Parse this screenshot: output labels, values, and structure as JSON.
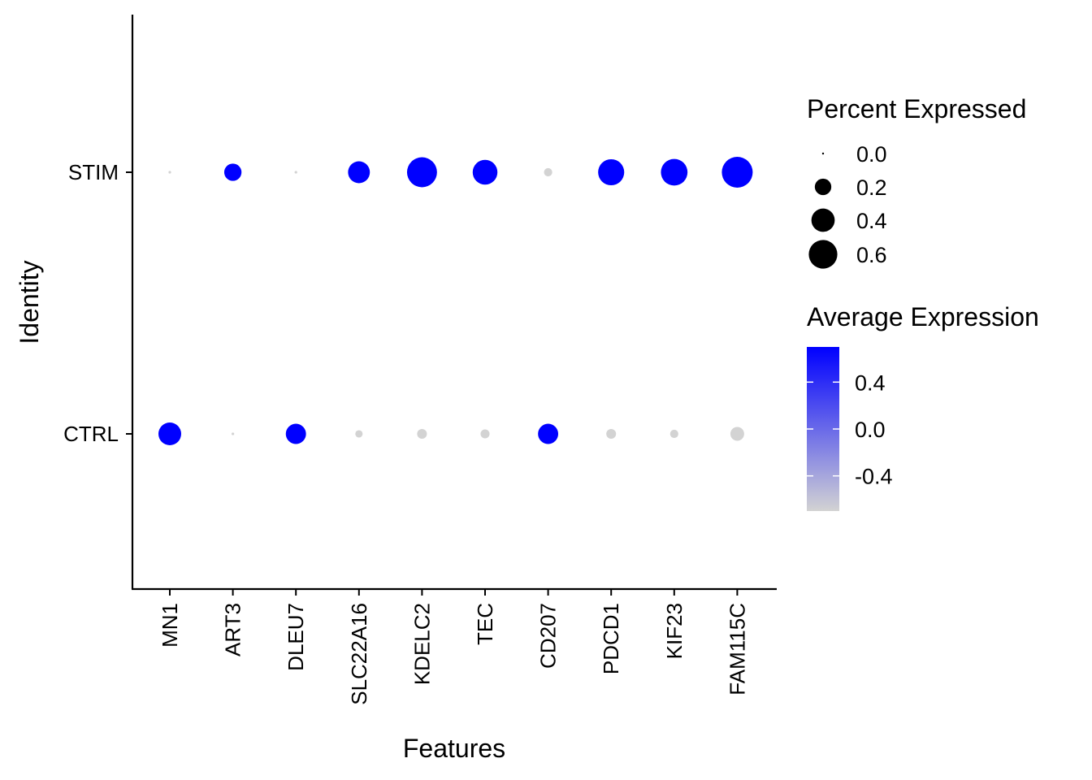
{
  "chart_data": {
    "type": "dotplot",
    "xlabel": "Features",
    "ylabel": "Identity",
    "features": [
      "MN1",
      "ART3",
      "DLEU7",
      "SLC22A16",
      "KDELC2",
      "TEC",
      "CD207",
      "PDCD1",
      "KIF23",
      "FAM115C"
    ],
    "identities": [
      "CTRL",
      "STIM"
    ],
    "series": [
      {
        "identity": "STIM",
        "pct_expressed": [
          0.005,
          0.22,
          0.005,
          0.35,
          0.66,
          0.45,
          0.05,
          0.5,
          0.52,
          0.7
        ],
        "avg_expression": [
          -0.7,
          0.7,
          -0.7,
          0.7,
          0.7,
          0.7,
          -0.7,
          0.7,
          0.7,
          0.7
        ]
      },
      {
        "identity": "CTRL",
        "pct_expressed": [
          0.38,
          0.005,
          0.3,
          0.04,
          0.07,
          0.06,
          0.3,
          0.07,
          0.05,
          0.14
        ],
        "avg_expression": [
          0.7,
          -0.7,
          0.7,
          -0.7,
          -0.7,
          -0.7,
          0.7,
          -0.7,
          -0.7,
          -0.7
        ]
      }
    ],
    "legend_size": {
      "title": "Percent Expressed",
      "breaks": [
        "0.0",
        "0.2",
        "0.4",
        "0.6"
      ],
      "values": [
        0.0,
        0.2,
        0.4,
        0.6
      ]
    },
    "legend_color": {
      "title": "Average Expression",
      "breaks": [
        "0.4",
        "0.0",
        "-0.4"
      ],
      "values": [
        0.4,
        0.0,
        -0.4
      ],
      "range": [
        -0.7,
        0.7
      ],
      "low_color": "#d3d3d3",
      "high_color": "#0000ff"
    },
    "grid": false,
    "legend_position": "right"
  }
}
